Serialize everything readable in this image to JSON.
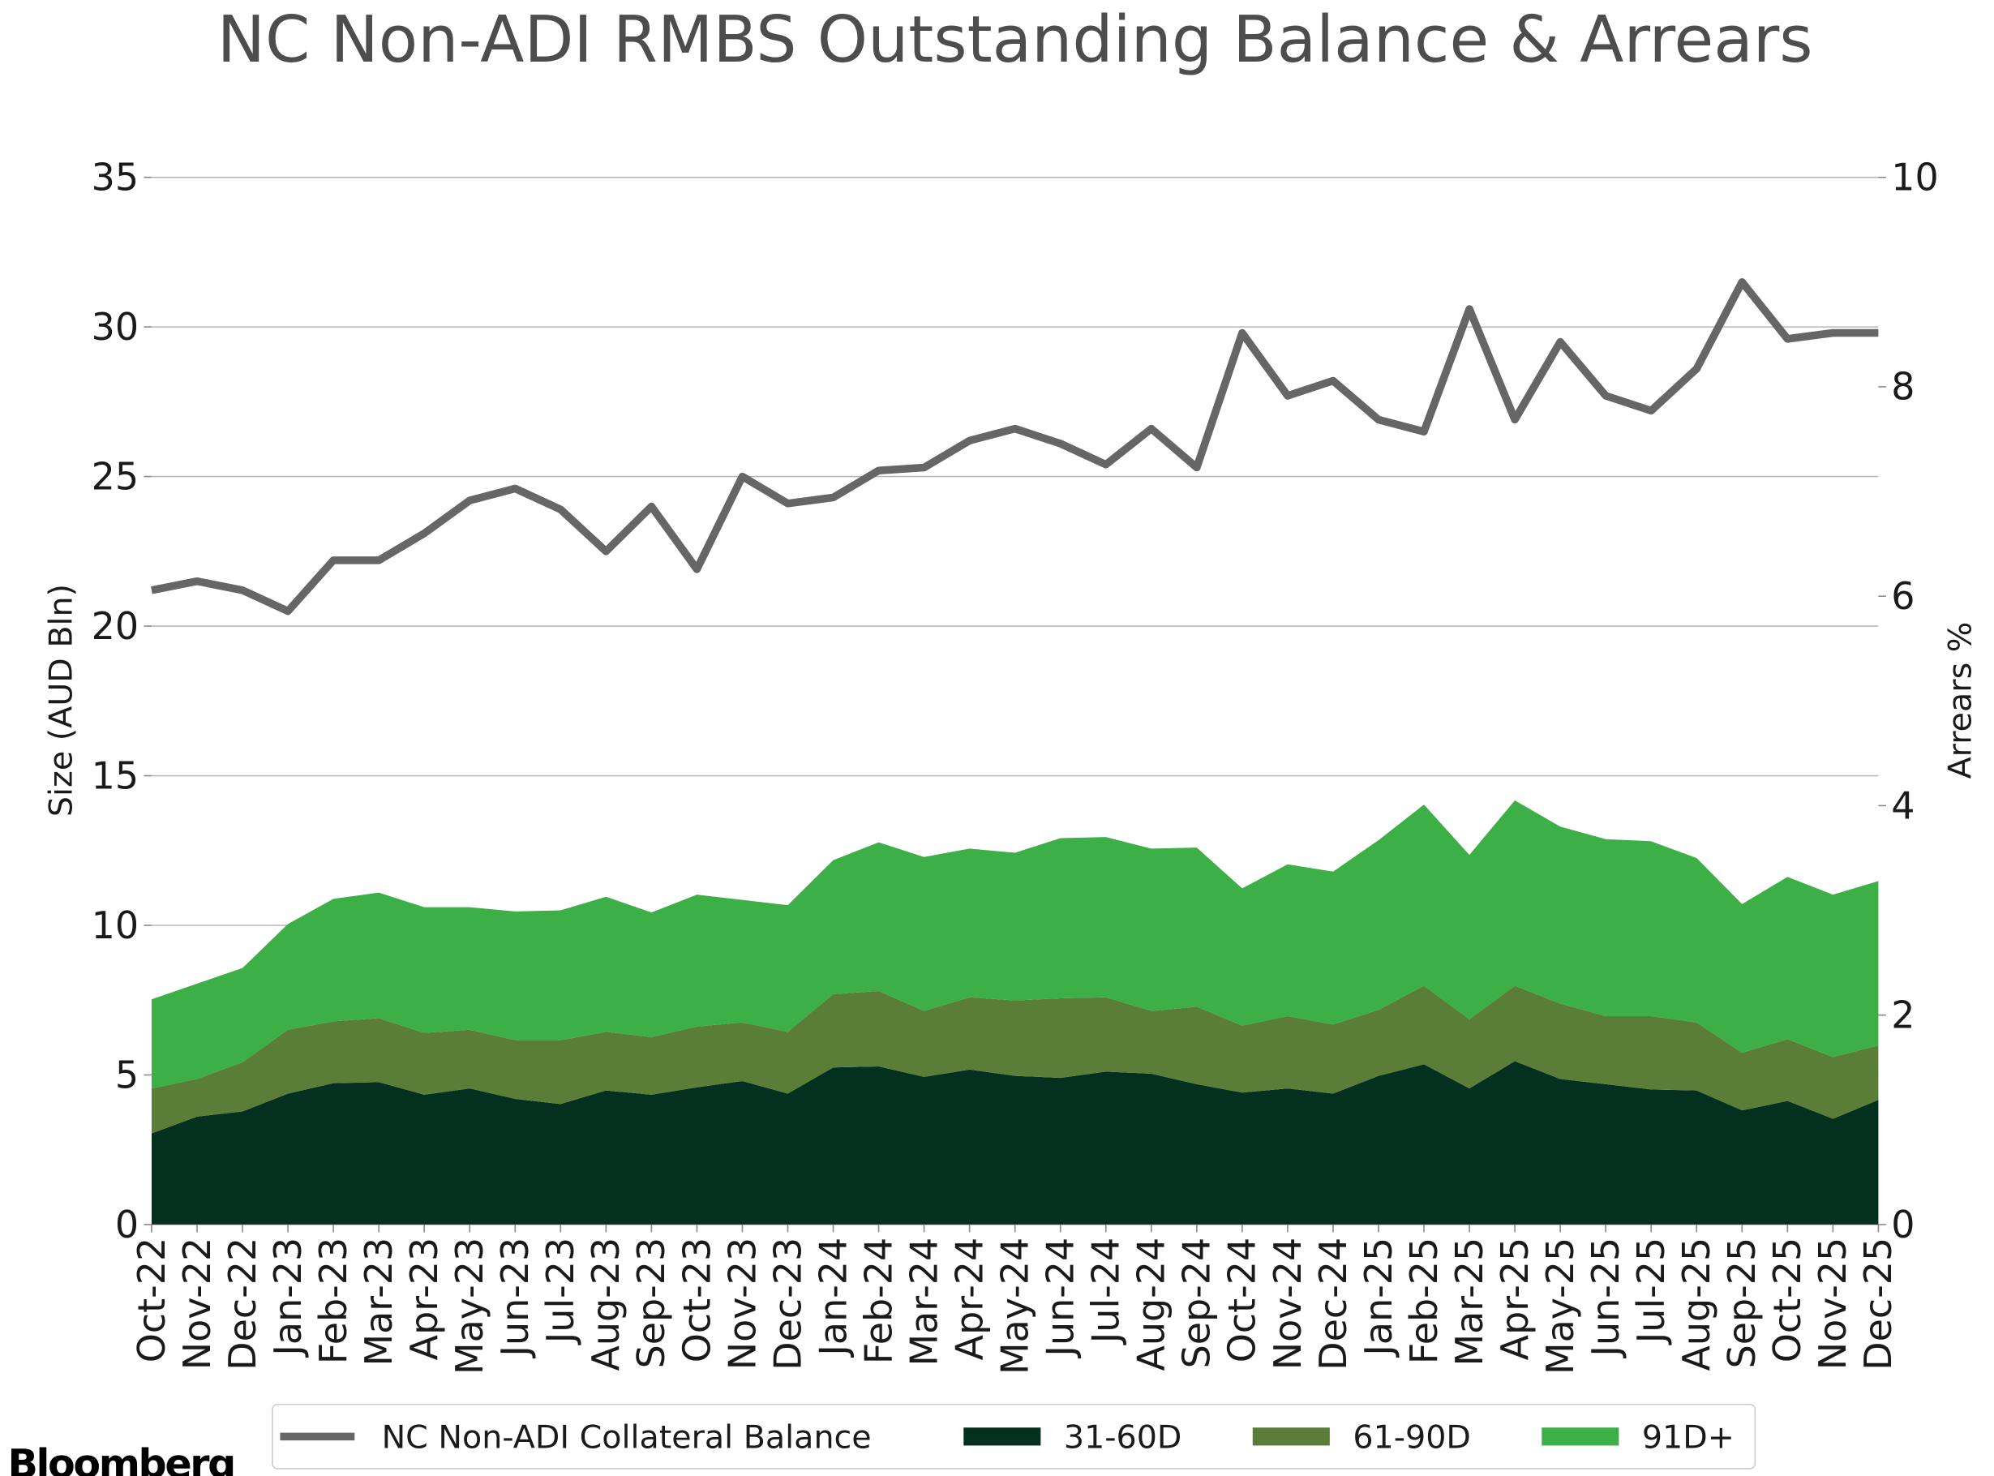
{
  "chart_data": {
    "type": "area",
    "title": "NC Non-ADI RMBS Outstanding Balance & Arrears",
    "ylabel": "Size (AUD Bln)",
    "y2label": "Arrears %",
    "source": "Bloomberg",
    "stacked": true,
    "grid": true,
    "legend": "bottom",
    "categories": [
      "Oct-22",
      "Nov-22",
      "Dec-22",
      "Jan-23",
      "Feb-23",
      "Mar-23",
      "Apr-23",
      "May-23",
      "Jun-23",
      "Jul-23",
      "Aug-23",
      "Sep-23",
      "Oct-23",
      "Nov-23",
      "Dec-23",
      "Jan-24",
      "Feb-24",
      "Mar-24",
      "Apr-24",
      "May-24",
      "Jun-24",
      "Jul-24",
      "Aug-24",
      "Sep-24",
      "Oct-24",
      "Nov-24",
      "Dec-24",
      "Jan-25",
      "Feb-25",
      "Mar-25",
      "Apr-25",
      "May-25",
      "Jun-25",
      "Jul-25",
      "Aug-25",
      "Sep-25",
      "Oct-25",
      "Nov-25",
      "Dec-25"
    ],
    "ylim": [
      0,
      35
    ],
    "yticks": [
      0,
      5,
      10,
      15,
      20,
      25,
      30,
      35
    ],
    "y2lim": [
      0,
      10
    ],
    "y2ticks": [
      0,
      2,
      4,
      6,
      8,
      10
    ],
    "series": [
      {
        "name": "NC Non-ADI Collateral Balance",
        "type": "line",
        "axis": "y",
        "color": "#666666",
        "values": [
          21.2,
          21.5,
          21.2,
          20.5,
          22.2,
          22.2,
          23.1,
          24.2,
          24.6,
          23.9,
          22.5,
          24.0,
          21.9,
          25.0,
          24.1,
          24.3,
          25.2,
          25.3,
          26.2,
          26.6,
          26.1,
          25.4,
          26.6,
          25.3,
          29.8,
          27.7,
          28.2,
          26.9,
          26.5,
          30.6,
          26.9,
          29.5,
          27.7,
          27.2,
          28.6,
          31.5,
          29.6,
          29.8,
          29.8
        ]
      },
      {
        "name": "31-60D",
        "type": "area",
        "axis": "y2",
        "color": "#04301f",
        "values": [
          0.87,
          1.03,
          1.08,
          1.25,
          1.35,
          1.36,
          1.24,
          1.3,
          1.2,
          1.15,
          1.28,
          1.24,
          1.31,
          1.37,
          1.25,
          1.5,
          1.51,
          1.41,
          1.48,
          1.42,
          1.4,
          1.46,
          1.44,
          1.34,
          1.26,
          1.3,
          1.25,
          1.42,
          1.53,
          1.3,
          1.56,
          1.39,
          1.34,
          1.29,
          1.28,
          1.09,
          1.18,
          1.01,
          1.19
        ]
      },
      {
        "name": "61-90D",
        "type": "area",
        "axis": "y2",
        "color": "#5a7d38",
        "values": [
          0.43,
          0.36,
          0.47,
          0.61,
          0.59,
          0.61,
          0.59,
          0.56,
          0.56,
          0.61,
          0.56,
          0.55,
          0.58,
          0.56,
          0.59,
          0.7,
          0.72,
          0.63,
          0.69,
          0.72,
          0.76,
          0.71,
          0.6,
          0.74,
          0.64,
          0.69,
          0.66,
          0.63,
          0.75,
          0.66,
          0.72,
          0.72,
          0.65,
          0.7,
          0.65,
          0.55,
          0.59,
          0.59,
          0.52
        ]
      },
      {
        "name": "91D+",
        "type": "area",
        "axis": "y2",
        "color": "#3daf47",
        "values": [
          0.85,
          0.91,
          0.9,
          1.01,
          1.17,
          1.2,
          1.2,
          1.17,
          1.23,
          1.24,
          1.29,
          1.19,
          1.26,
          1.17,
          1.21,
          1.28,
          1.42,
          1.47,
          1.42,
          1.41,
          1.53,
          1.53,
          1.55,
          1.52,
          1.31,
          1.45,
          1.46,
          1.62,
          1.73,
          1.57,
          1.77,
          1.69,
          1.69,
          1.67,
          1.57,
          1.42,
          1.55,
          1.55,
          1.57
        ]
      }
    ]
  }
}
